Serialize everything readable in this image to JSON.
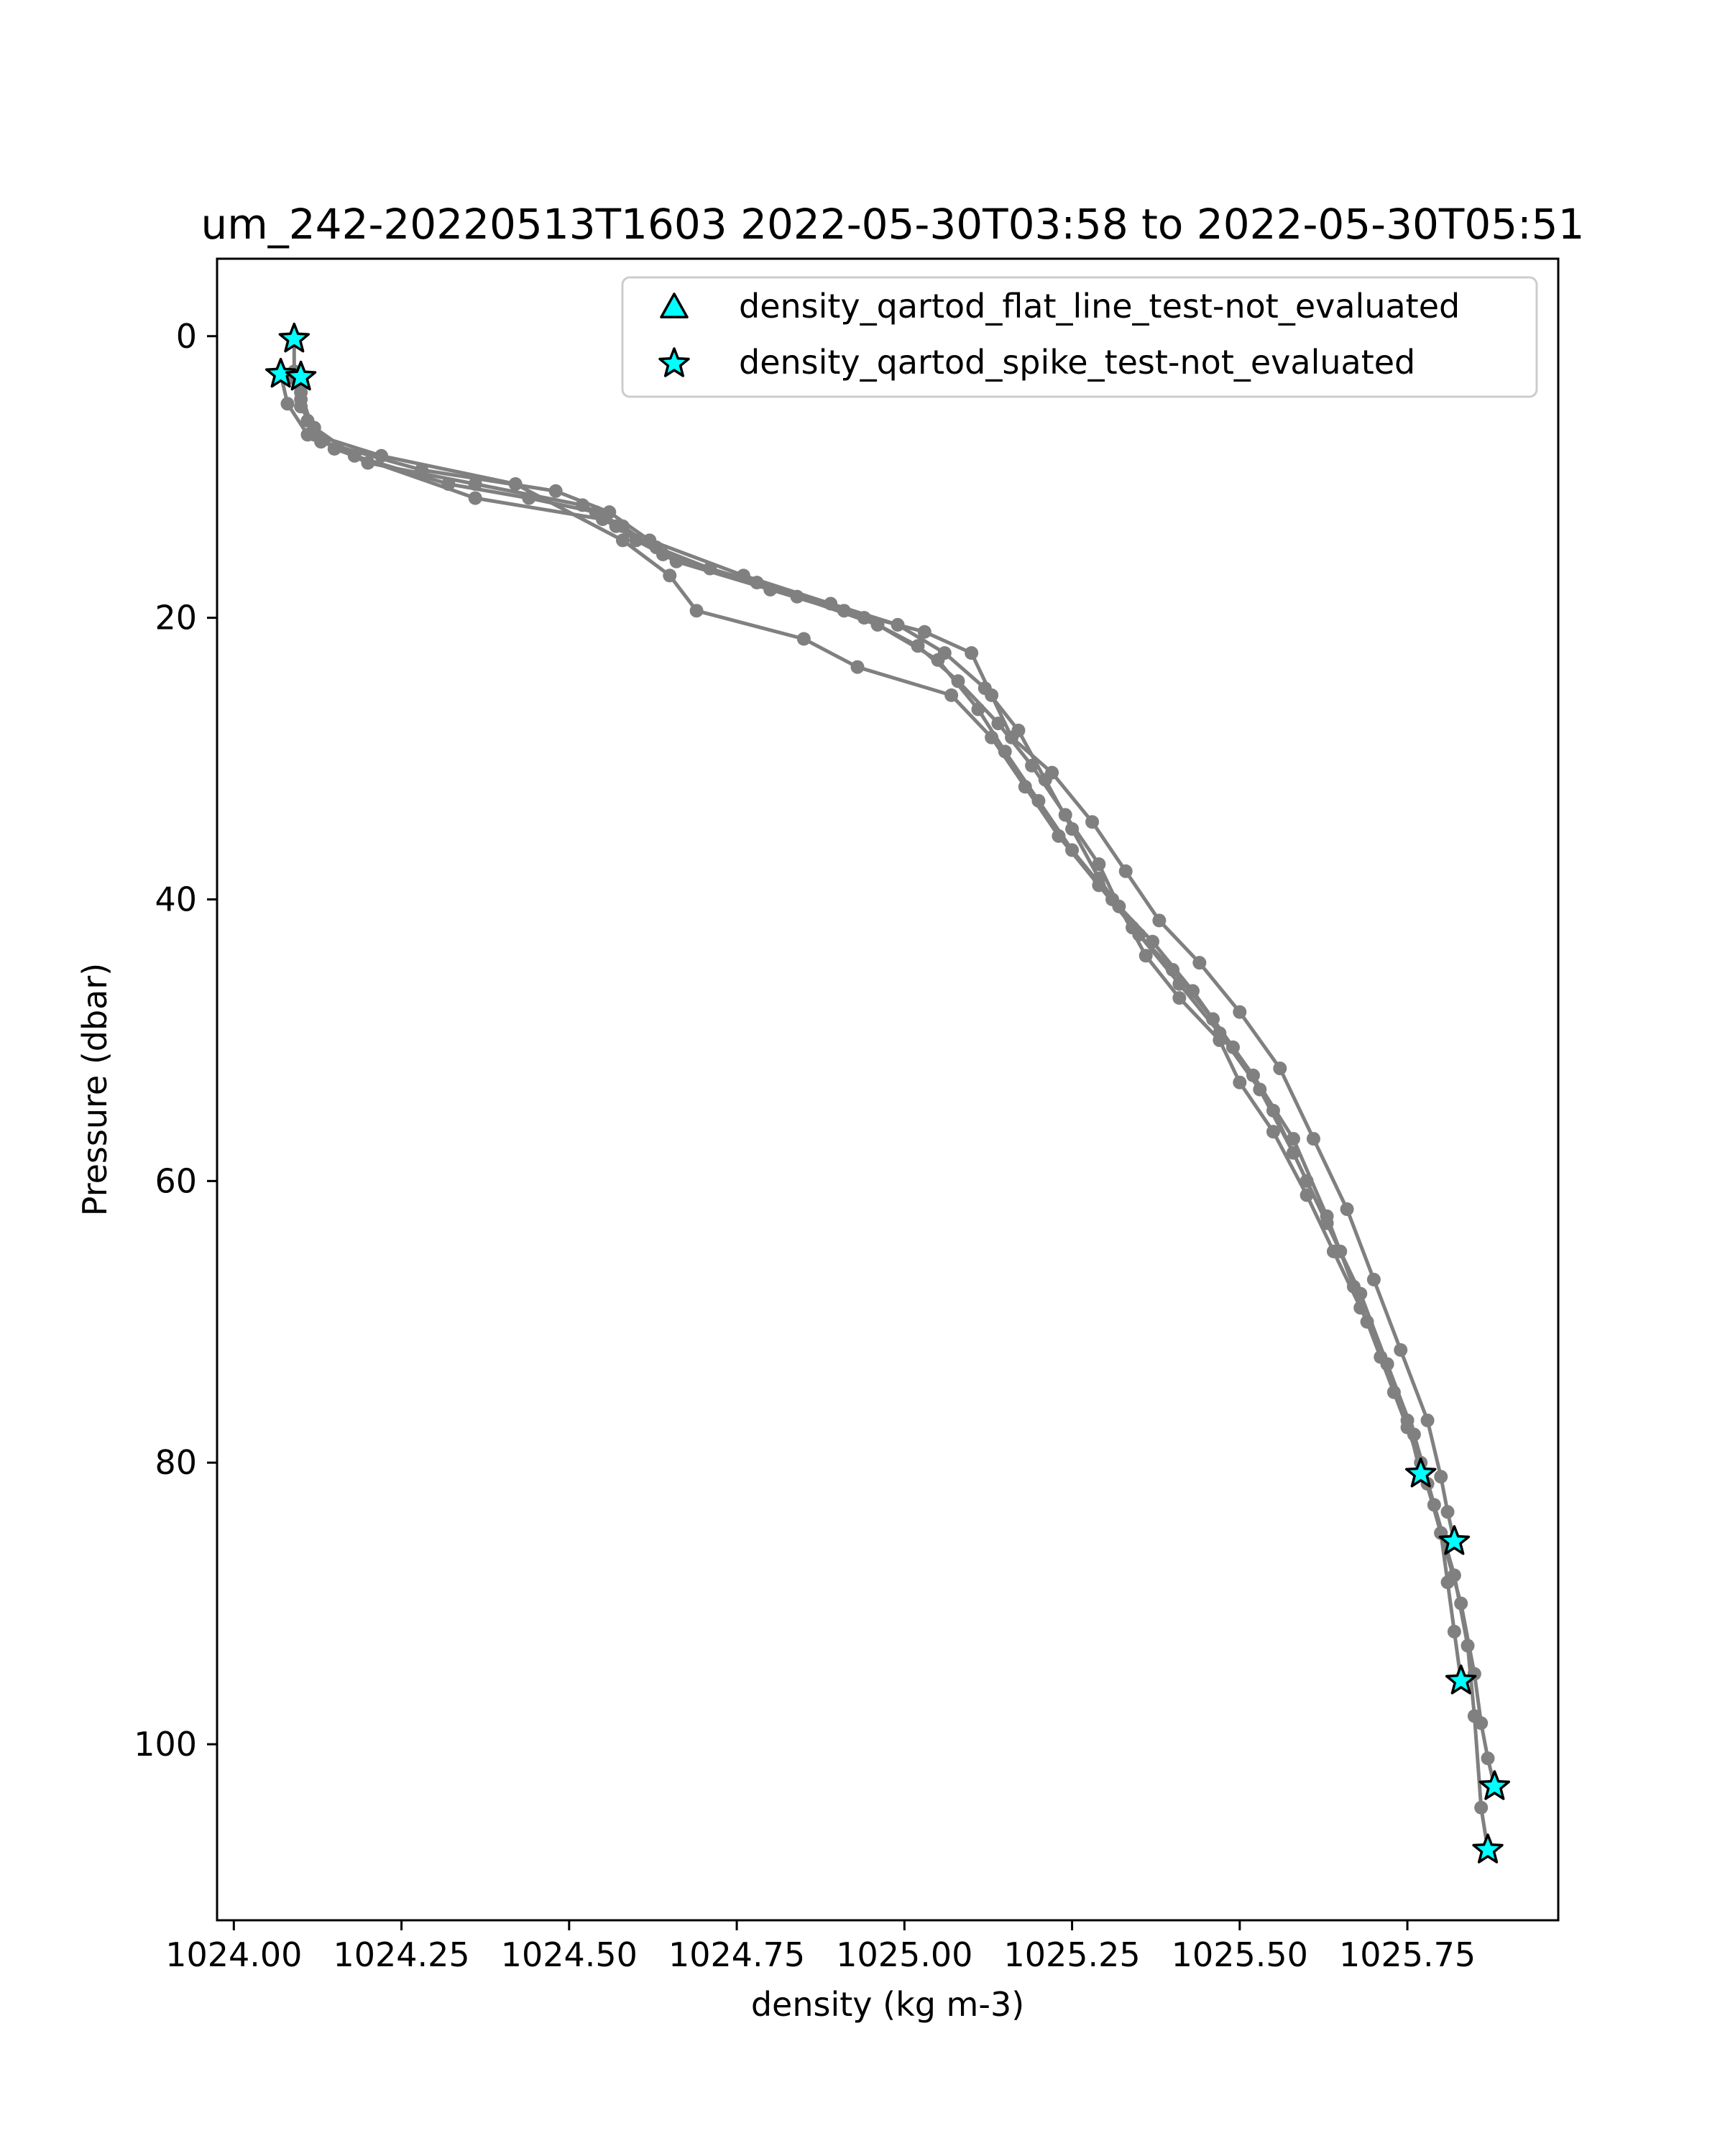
{
  "chart_data": {
    "type": "line",
    "title": "um_242-20220513T1603 2022-05-30T03:58 to 2022-05-30T05:51",
    "xlabel": "density (kg m-3)",
    "ylabel": "Pressure (dbar)",
    "xlim": [
      1023.975,
      1025.975
    ],
    "ylim": [
      112.5,
      -5.5
    ],
    "y_inverted": true,
    "x_ticks": [
      1024.0,
      1024.25,
      1024.5,
      1024.75,
      1025.0,
      1025.25,
      1025.5,
      1025.75
    ],
    "x_tick_labels": [
      "1024.00",
      "1024.25",
      "1024.50",
      "1024.75",
      "1025.00",
      "1025.25",
      "1025.50",
      "1025.75"
    ],
    "y_ticks": [
      0,
      20,
      40,
      60,
      80,
      100
    ],
    "y_tick_labels": [
      "0",
      "20",
      "40",
      "60",
      "80",
      "100"
    ],
    "grid": false,
    "legend_position": "top-right",
    "line_color": "#808080",
    "marker_fill": "#00ffff",
    "marker_edge": "#000000",
    "legend": [
      {
        "label": "density_qartod_flat_line_test-not_evaluated",
        "marker": "triangle"
      },
      {
        "label": "density_qartod_spike_test-not_evaluated",
        "marker": "star"
      }
    ],
    "series": [
      {
        "x": [
          1024.09,
          1024.09,
          1024.1,
          1024.12,
          1024.18,
          1024.32,
          1024.44,
          1024.54,
          1024.57,
          1024.6,
          1024.66,
          1024.8,
          1024.94,
          1025.02,
          1025.08,
          1025.14,
          1025.19,
          1025.24,
          1025.29,
          1025.32,
          1025.36,
          1025.41,
          1025.47,
          1025.5,
          1025.55,
          1025.6,
          1025.64,
          1025.68,
          1025.72,
          1025.75,
          1025.77
        ],
        "y": [
          0.2,
          2.5,
          4.5,
          6.5,
          8.5,
          10.5,
          11.5,
          12.5,
          13.5,
          14.5,
          16.0,
          18.0,
          20.0,
          22.0,
          24.5,
          27.5,
          30.5,
          34.0,
          37.5,
          40.5,
          44.0,
          47.0,
          50.0,
          53.0,
          56.5,
          61.0,
          65.0,
          69.0,
          73.0,
          77.0,
          80.8
        ]
      },
      {
        "x": [
          1024.07,
          1024.08,
          1024.11,
          1024.2,
          1024.36,
          1024.52,
          1024.58,
          1024.64,
          1024.78,
          1024.91,
          1025.03,
          1025.1,
          1025.13,
          1025.16,
          1025.22,
          1025.28,
          1025.33,
          1025.38,
          1025.44,
          1025.5,
          1025.56,
          1025.61,
          1025.66,
          1025.7,
          1025.74,
          1025.78,
          1025.8,
          1025.81,
          1025.82
        ],
        "y": [
          2.7,
          4.8,
          7.0,
          9.0,
          10.5,
          12.0,
          13.5,
          15.5,
          17.5,
          19.5,
          21.0,
          22.5,
          25.5,
          28.5,
          31.0,
          34.5,
          38.0,
          41.5,
          44.5,
          48.0,
          52.0,
          57.0,
          62.0,
          67.0,
          72.0,
          77.0,
          81.0,
          83.5,
          85.6
        ]
      },
      {
        "x": [
          1024.1,
          1024.1,
          1024.13,
          1024.28,
          1024.48,
          1024.56,
          1024.62,
          1024.76,
          1024.89,
          1024.99,
          1025.06,
          1025.12,
          1025.17,
          1025.21,
          1025.25,
          1025.29,
          1025.34,
          1025.4,
          1025.46,
          1025.52,
          1025.58,
          1025.63,
          1025.67,
          1025.71,
          1025.75,
          1025.78,
          1025.8,
          1025.81,
          1025.82,
          1025.83
        ],
        "y": [
          2.9,
          5.0,
          7.5,
          9.5,
          11.0,
          12.5,
          14.5,
          17.0,
          19.0,
          20.5,
          22.5,
          25.0,
          28.0,
          31.5,
          35.0,
          38.5,
          42.0,
          45.0,
          48.5,
          52.5,
          57.0,
          62.5,
          67.5,
          72.5,
          77.5,
          81.5,
          85.0,
          88.5,
          92.0,
          95.5
        ]
      },
      {
        "x": [
          1024.09,
          1024.11,
          1024.15,
          1024.36,
          1024.55,
          1024.63,
          1024.71,
          1024.84,
          1024.96,
          1025.05,
          1025.11,
          1025.15,
          1025.2,
          1025.25,
          1025.31,
          1025.37,
          1025.43,
          1025.49,
          1025.55,
          1025.6,
          1025.65,
          1025.69,
          1025.73,
          1025.77,
          1025.8,
          1025.83,
          1025.85,
          1025.86,
          1025.87,
          1025.88
        ],
        "y": [
          3.0,
          6.0,
          8.0,
          11.5,
          13.0,
          15.0,
          16.5,
          18.5,
          20.5,
          23.0,
          26.5,
          29.5,
          33.0,
          36.5,
          40.0,
          43.0,
          46.5,
          50.5,
          55.0,
          60.0,
          65.0,
          70.0,
          75.0,
          80.0,
          85.0,
          90.0,
          95.0,
          98.5,
          101.0,
          103.0
        ]
      },
      {
        "x": [
          1024.1,
          1024.12,
          1024.22,
          1024.42,
          1024.58,
          1024.65,
          1024.69,
          1024.85,
          1024.93,
          1025.07,
          1025.13,
          1025.18,
          1025.23,
          1025.29,
          1025.35,
          1025.41,
          1025.47,
          1025.53,
          1025.58,
          1025.63,
          1025.68,
          1025.72,
          1025.76,
          1025.79,
          1025.82,
          1025.84,
          1025.85,
          1025.86,
          1025.87
        ],
        "y": [
          4.0,
          7.0,
          8.5,
          10.5,
          14.5,
          17.0,
          19.5,
          21.5,
          23.5,
          25.5,
          28.5,
          32.0,
          35.5,
          39.0,
          42.5,
          46.0,
          49.5,
          53.5,
          58.0,
          63.0,
          68.0,
          73.0,
          78.0,
          83.0,
          88.0,
          93.0,
          98.0,
          104.5,
          107.5
        ]
      }
    ],
    "flagged_points": [
      {
        "x": 1024.09,
        "y": 0.2
      },
      {
        "x": 1024.07,
        "y": 2.7
      },
      {
        "x": 1024.1,
        "y": 2.9
      },
      {
        "x": 1025.77,
        "y": 80.8
      },
      {
        "x": 1025.82,
        "y": 85.6
      },
      {
        "x": 1025.83,
        "y": 95.5
      },
      {
        "x": 1025.88,
        "y": 103.0
      },
      {
        "x": 1025.87,
        "y": 107.5
      }
    ]
  }
}
